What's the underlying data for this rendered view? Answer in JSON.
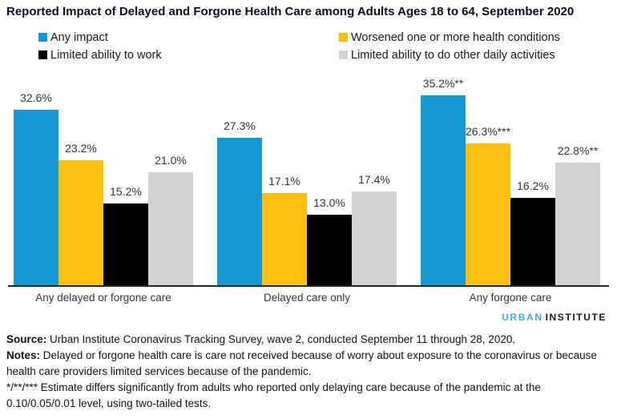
{
  "chart_data": {
    "type": "bar",
    "title": "Reported Impact of Delayed and Forgone Health Care among Adults Ages 18 to 64, September 2020",
    "categories": [
      "Any delayed or forgone care",
      "Delayed care only",
      "Any forgone care"
    ],
    "series": [
      {
        "name": "Any impact",
        "color": "#1696d2",
        "values": [
          32.6,
          27.3,
          35.2
        ],
        "labels": [
          "32.6%",
          "27.3%",
          "35.2%**"
        ]
      },
      {
        "name": "Worsened one or more health conditions",
        "color": "#fdbf11",
        "values": [
          23.2,
          17.1,
          26.3
        ],
        "labels": [
          "23.2%",
          "17.1%",
          "26.3%***"
        ]
      },
      {
        "name": "Limited ability to work",
        "color": "#000000",
        "values": [
          15.2,
          13.0,
          16.2
        ],
        "labels": [
          "15.2%",
          "13.0%",
          "16.2%"
        ]
      },
      {
        "name": "Limited ability to do other daily activities",
        "color": "#d2d2d2",
        "values": [
          21.0,
          17.4,
          22.8
        ],
        "labels": [
          "21.0%",
          "17.4%",
          "22.8%**"
        ]
      }
    ],
    "xlabel": "",
    "ylabel": "",
    "ylim": [
      0,
      41
    ],
    "grid": false,
    "value_labels": true,
    "legend_position": "top"
  },
  "logo": {
    "part1": "URBAN",
    "part1_color": "#49a8dc",
    "part2": "INSTITUTE",
    "part2_color": "#1a1a1a"
  },
  "footer": {
    "source_label": "Source:",
    "source_text": " Urban Institute Coronavirus Tracking Survey, wave 2, conducted September 11 through 28, 2020.",
    "notes_label": "Notes:",
    "notes_text": " Delayed or forgone health care is care not received because of worry about exposure to the coronavirus or because health care providers limited services because of the pandemic.",
    "sig_text": "*/**/*** Estimate differs significantly from adults who reported only delaying care because of the pandemic at the 0.10/0.05/0.01 level, using two-tailed tests."
  }
}
